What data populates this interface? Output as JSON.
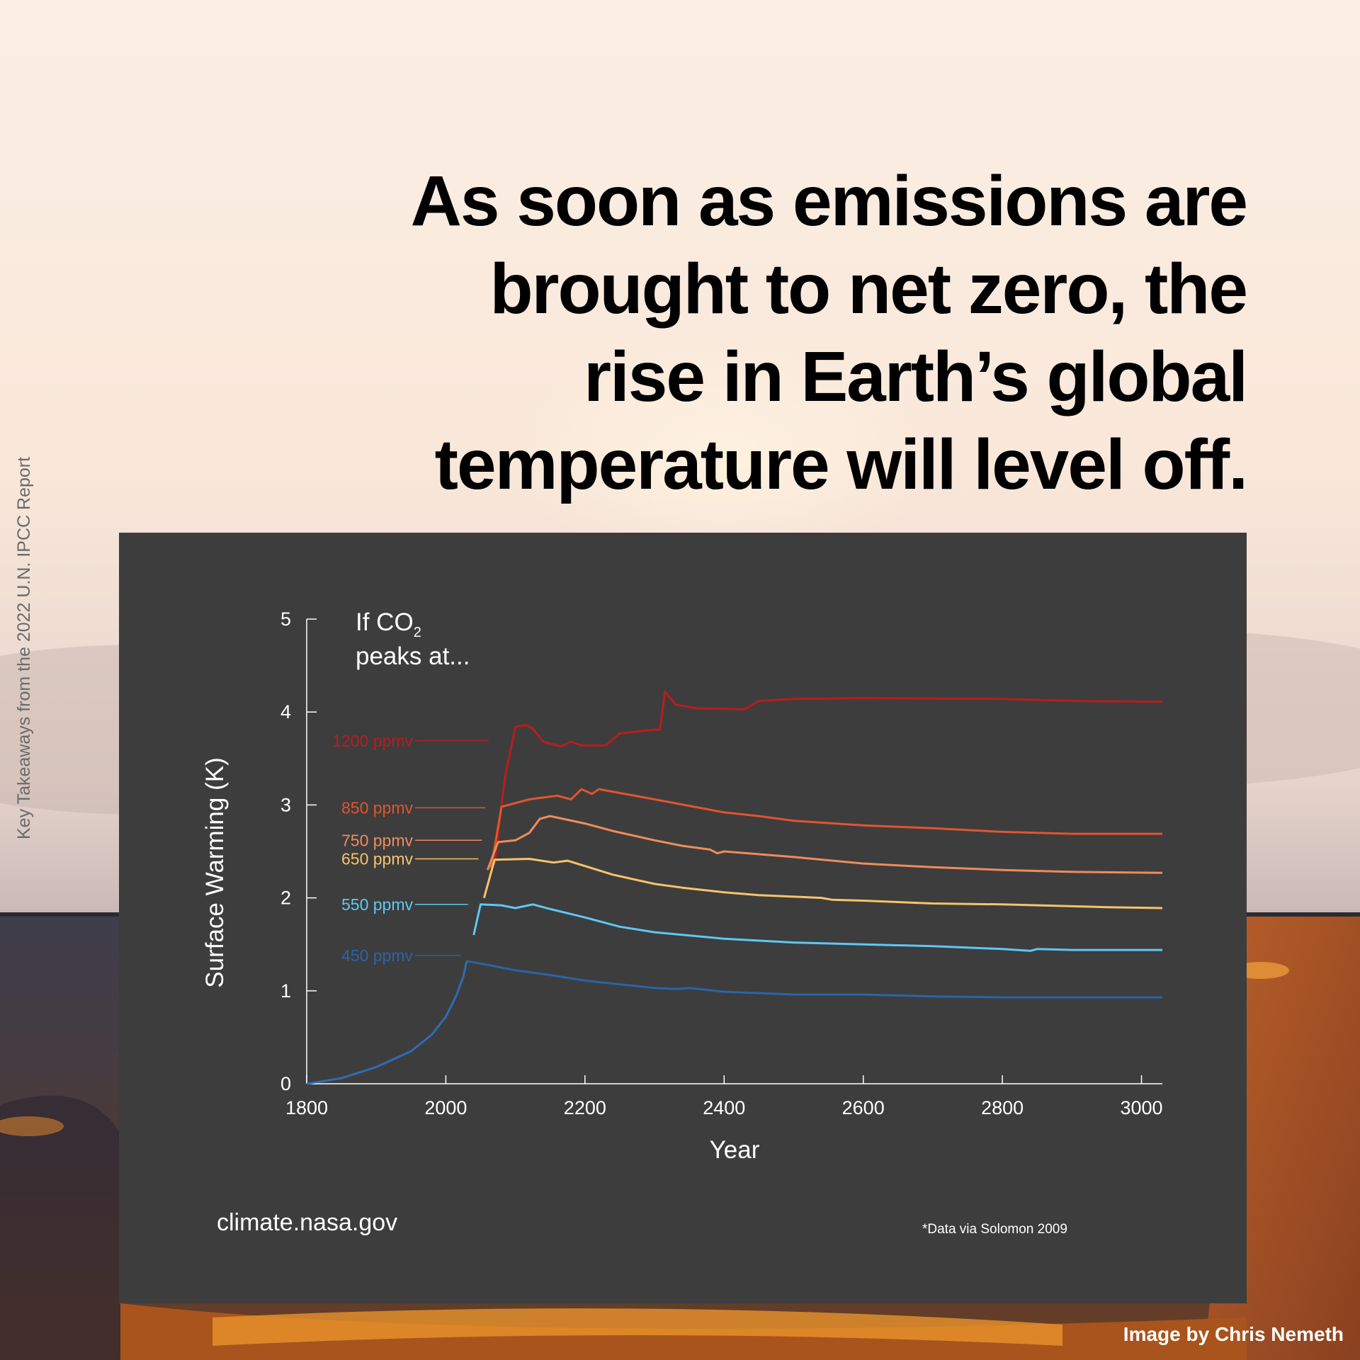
{
  "headline": {
    "lines": [
      "As soon as emissions are",
      "brought to net zero, the",
      "rise in Earth’s global",
      "temperature will level off."
    ]
  },
  "side_caption": "Key Takeaways from the 2022 U.N. IPCC Report",
  "credit": "Image by Chris Nemeth",
  "footer": {
    "site": "climate.nasa.gov",
    "source": "*Data via Solomon 2009"
  },
  "colors": {
    "background_panel": "#3d3d3d",
    "axis": "#ffffff"
  },
  "chart_data": {
    "type": "line",
    "xlabel": "Year",
    "ylabel": "Surface Warming (K)",
    "xlim": [
      1800,
      3030
    ],
    "ylim": [
      0,
      5
    ],
    "x_ticks": [
      1800,
      2000,
      2200,
      2400,
      2600,
      2800,
      3000
    ],
    "y_ticks": [
      0,
      1,
      2,
      3,
      4,
      5
    ],
    "annotation": {
      "line1_prefix": "If CO",
      "line1_sub": "2",
      "line2": "peaks at..."
    },
    "historical": {
      "color": "#2d6db3",
      "points": [
        [
          1800,
          0
        ],
        [
          1850,
          0.06
        ],
        [
          1900,
          0.18
        ],
        [
          1950,
          0.35
        ],
        [
          1980,
          0.53
        ],
        [
          2000,
          0.72
        ],
        [
          2015,
          0.95
        ],
        [
          2025,
          1.15
        ],
        [
          2030,
          1.32
        ]
      ]
    },
    "series": [
      {
        "name": "1200 ppmv",
        "color": "#b81d1d",
        "label_y": 3.69,
        "points": [
          [
            2070,
            2.36
          ],
          [
            2085,
            3.3
          ],
          [
            2100,
            3.84
          ],
          [
            2115,
            3.86
          ],
          [
            2125,
            3.82
          ],
          [
            2140,
            3.68
          ],
          [
            2165,
            3.63
          ],
          [
            2180,
            3.68
          ],
          [
            2195,
            3.64
          ],
          [
            2230,
            3.64
          ],
          [
            2250,
            3.77
          ],
          [
            2300,
            3.81
          ],
          [
            2308,
            3.81
          ],
          [
            2315,
            4.22
          ],
          [
            2330,
            4.08
          ],
          [
            2360,
            4.04
          ],
          [
            2430,
            4.03
          ],
          [
            2450,
            4.12
          ],
          [
            2500,
            4.14
          ],
          [
            2600,
            4.15
          ],
          [
            2800,
            4.14
          ],
          [
            2900,
            4.12
          ],
          [
            3030,
            4.11
          ]
        ]
      },
      {
        "name": "850 ppmv",
        "color": "#e0552f",
        "label_y": 2.97,
        "points": [
          [
            2065,
            2.32
          ],
          [
            2080,
            2.98
          ],
          [
            2120,
            3.06
          ],
          [
            2160,
            3.1
          ],
          [
            2180,
            3.06
          ],
          [
            2195,
            3.17
          ],
          [
            2210,
            3.12
          ],
          [
            2220,
            3.17
          ],
          [
            2300,
            3.06
          ],
          [
            2400,
            2.92
          ],
          [
            2450,
            2.88
          ],
          [
            2500,
            2.83
          ],
          [
            2600,
            2.78
          ],
          [
            2700,
            2.75
          ],
          [
            2800,
            2.71
          ],
          [
            2900,
            2.69
          ],
          [
            3030,
            2.69
          ]
        ]
      },
      {
        "name": "750 ppmv",
        "color": "#ef8c5a",
        "label_y": 2.62,
        "points": [
          [
            2060,
            2.3
          ],
          [
            2075,
            2.6
          ],
          [
            2100,
            2.62
          ],
          [
            2120,
            2.7
          ],
          [
            2135,
            2.85
          ],
          [
            2150,
            2.88
          ],
          [
            2200,
            2.8
          ],
          [
            2240,
            2.72
          ],
          [
            2300,
            2.62
          ],
          [
            2340,
            2.56
          ],
          [
            2380,
            2.52
          ],
          [
            2390,
            2.48
          ],
          [
            2400,
            2.5
          ],
          [
            2500,
            2.44
          ],
          [
            2600,
            2.37
          ],
          [
            2700,
            2.33
          ],
          [
            2800,
            2.3
          ],
          [
            2900,
            2.28
          ],
          [
            3030,
            2.27
          ]
        ]
      },
      {
        "name": "650 ppmv",
        "color": "#f6c46a",
        "label_y": 2.42,
        "points": [
          [
            2055,
            2.0
          ],
          [
            2070,
            2.41
          ],
          [
            2120,
            2.42
          ],
          [
            2155,
            2.38
          ],
          [
            2175,
            2.4
          ],
          [
            2240,
            2.25
          ],
          [
            2300,
            2.15
          ],
          [
            2340,
            2.11
          ],
          [
            2400,
            2.06
          ],
          [
            2450,
            2.03
          ],
          [
            2540,
            2.0
          ],
          [
            2555,
            1.98
          ],
          [
            2600,
            1.97
          ],
          [
            2700,
            1.94
          ],
          [
            2800,
            1.93
          ],
          [
            2900,
            1.91
          ],
          [
            2950,
            1.9
          ],
          [
            3030,
            1.89
          ]
        ]
      },
      {
        "name": "550 ppmv",
        "color": "#5ec8f3",
        "label_y": 1.93,
        "points": [
          [
            2040,
            1.6
          ],
          [
            2050,
            1.93
          ],
          [
            2080,
            1.92
          ],
          [
            2100,
            1.89
          ],
          [
            2125,
            1.93
          ],
          [
            2150,
            1.88
          ],
          [
            2200,
            1.79
          ],
          [
            2250,
            1.69
          ],
          [
            2300,
            1.63
          ],
          [
            2400,
            1.56
          ],
          [
            2500,
            1.52
          ],
          [
            2600,
            1.5
          ],
          [
            2700,
            1.48
          ],
          [
            2800,
            1.45
          ],
          [
            2840,
            1.43
          ],
          [
            2850,
            1.45
          ],
          [
            2900,
            1.44
          ],
          [
            3030,
            1.44
          ]
        ]
      },
      {
        "name": "450 ppmv",
        "color": "#2a64a6",
        "label_y": 1.38,
        "points": [
          [
            2030,
            1.32
          ],
          [
            2060,
            1.28
          ],
          [
            2100,
            1.22
          ],
          [
            2150,
            1.17
          ],
          [
            2200,
            1.11
          ],
          [
            2250,
            1.07
          ],
          [
            2300,
            1.03
          ],
          [
            2330,
            1.02
          ],
          [
            2350,
            1.03
          ],
          [
            2400,
            0.99
          ],
          [
            2500,
            0.96
          ],
          [
            2600,
            0.96
          ],
          [
            2700,
            0.94
          ],
          [
            2800,
            0.93
          ],
          [
            2900,
            0.93
          ],
          [
            3030,
            0.93
          ]
        ]
      }
    ]
  }
}
